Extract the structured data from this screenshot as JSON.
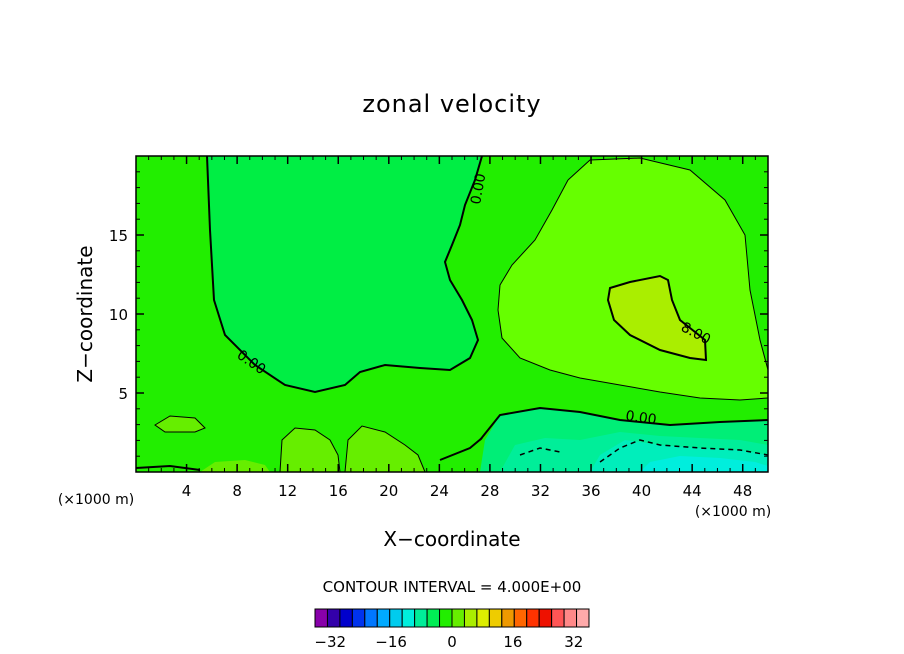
{
  "chart_data": {
    "type": "heatmap",
    "title": "zonal velocity",
    "xlabel": "X−coordinate",
    "ylabel": "Z−coordinate",
    "x_unit_label": "(×1000 m)",
    "x_unit_label_right": "(×1000 m)",
    "xlim": [
      0,
      50
    ],
    "ylim": [
      0,
      20
    ],
    "x_ticks": [
      4,
      8,
      12,
      16,
      20,
      24,
      28,
      32,
      36,
      40,
      44,
      48
    ],
    "y_ticks": [
      5,
      10,
      15
    ],
    "contour_interval_label": "CONTOUR INTERVAL = 4.000E+00",
    "contour_labels": [
      "0.00",
      "0.00",
      "0.00",
      "8.00"
    ],
    "regions": [
      {
        "level": 0,
        "description": "background band between -2 and 2",
        "color": "#22ee00"
      },
      {
        "level": -4,
        "description": "left-center low region",
        "color": "#00ee44"
      },
      {
        "level": 4,
        "description": "upper-right region",
        "color": "#66ff00"
      },
      {
        "level": 8,
        "description": "core near x=43, z=10",
        "color": "#aaee00"
      },
      {
        "level": -8,
        "description": "lower-right near surface",
        "color": "#00ee88"
      },
      {
        "level": -12,
        "description": "bottom-right near surface",
        "color": "#00eecc"
      }
    ],
    "colorbar": {
      "ticks": [
        "−32",
        "−16",
        "0",
        "16",
        "32"
      ],
      "tick_values": [
        -32,
        -16,
        0,
        16,
        32
      ],
      "range": [
        -36,
        36
      ],
      "colors": [
        "#8800aa",
        "#3300aa",
        "#0000cc",
        "#0033ee",
        "#0077ff",
        "#00aaff",
        "#00ccee",
        "#00eedd",
        "#00ee99",
        "#00ee55",
        "#22ee00",
        "#66ee00",
        "#aaee00",
        "#ddee00",
        "#eecc00",
        "#ee9900",
        "#ff6600",
        "#ff3300",
        "#ee1100",
        "#ff5555",
        "#ff8888",
        "#ffaaaa"
      ]
    },
    "grid": false
  }
}
